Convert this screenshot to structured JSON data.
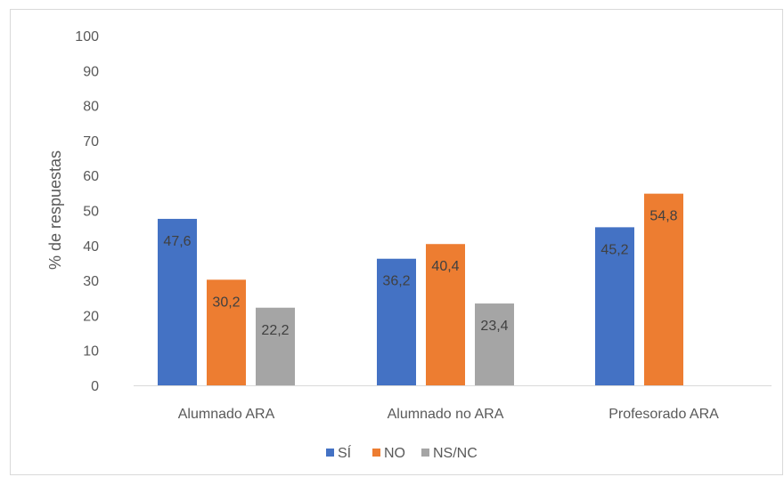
{
  "chart_data": {
    "type": "bar",
    "title": "",
    "xlabel": "",
    "ylabel": "% de respuestas",
    "ylim": [
      0,
      100
    ],
    "yticks": [
      0,
      10,
      20,
      30,
      40,
      50,
      60,
      70,
      80,
      90,
      100
    ],
    "grid": false,
    "legend_position": "bottom",
    "categories": [
      "Alumnado ARA",
      "Alumnado no ARA",
      "Profesorado ARA"
    ],
    "series": [
      {
        "name": "SÍ",
        "color": "#4472c4",
        "values": [
          47.6,
          36.2,
          45.2
        ],
        "labels": [
          "47,6",
          "36,2",
          "45,2"
        ]
      },
      {
        "name": "NO",
        "color": "#ed7d31",
        "values": [
          30.2,
          40.4,
          54.8
        ],
        "labels": [
          "30,2",
          "40,4",
          "54,8"
        ]
      },
      {
        "name": "NS/NC",
        "color": "#a5a5a5",
        "values": [
          22.2,
          23.4,
          null
        ],
        "labels": [
          "22,2",
          "23,4",
          ""
        ]
      }
    ]
  }
}
